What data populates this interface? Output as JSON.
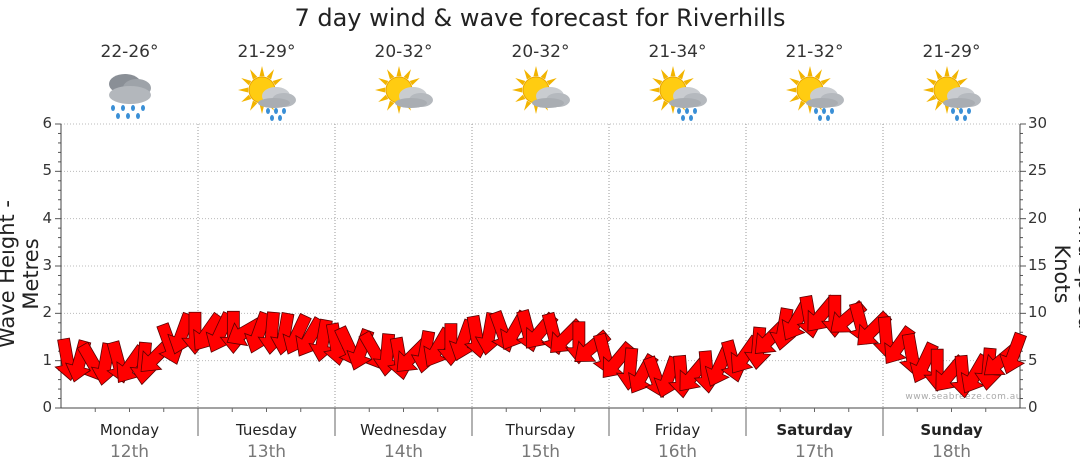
{
  "chart_data": {
    "type": "line",
    "title": "7 day wind & wave forecast for Riverhills",
    "ylabel_left": "Wave Height - Metres",
    "ylabel_right": "Wind Speed - Knots",
    "ylim_left": [
      0,
      6
    ],
    "ylim_right": [
      0,
      30
    ],
    "yticks_left": [
      "0",
      "1",
      "2",
      "3",
      "4",
      "5",
      "6"
    ],
    "yticks_right": [
      "0",
      "5",
      "10",
      "15",
      "20",
      "25",
      "30"
    ],
    "days": [
      {
        "name": "Monday",
        "date": "12th",
        "temp": "22-26°",
        "icon": "rain-cloud-icon",
        "bold": false
      },
      {
        "name": "Tuesday",
        "date": "13th",
        "temp": "21-29°",
        "icon": "sun-cloud-rain-icon",
        "bold": false
      },
      {
        "name": "Wednesday",
        "date": "14th",
        "temp": "20-32°",
        "icon": "sun-cloud-icon",
        "bold": false
      },
      {
        "name": "Thursday",
        "date": "15th",
        "temp": "20-32°",
        "icon": "sun-cloud-icon",
        "bold": false
      },
      {
        "name": "Friday",
        "date": "16th",
        "temp": "21-34°",
        "icon": "sun-cloud-rain-icon",
        "bold": false
      },
      {
        "name": "Saturday",
        "date": "17th",
        "temp": "21-32°",
        "icon": "sun-cloud-rain-icon",
        "bold": true
      },
      {
        "name": "Sunday",
        "date": "18th",
        "temp": "21-29°",
        "icon": "sun-cloud-rain-icon",
        "bold": true
      }
    ],
    "wind_series": {
      "name": "Wind speed (knots)",
      "color": "#ff0000",
      "arrow_direction_deg": [
        80,
        105,
        60,
        100,
        75,
        125,
        95,
        135,
        70,
        110,
        90,
        125,
        115,
        90,
        150,
        110,
        95,
        100,
        115,
        120,
        100,
        80,
        65,
        110,
        60,
        95,
        80,
        135,
        100,
        120,
        90,
        110,
        80,
        100,
        70,
        120,
        75,
        130,
        75,
        135,
        90,
        140,
        75,
        130,
        95,
        120,
        70,
        110,
        85,
        130,
        85,
        115,
        75,
        125,
        95,
        135,
        100,
        120,
        80,
        130,
        90,
        140,
        75,
        135,
        85,
        125,
        80,
        115,
        90,
        130,
        85,
        120,
        95,
        140,
        110
      ],
      "values": [
        5.2,
        5,
        4.8,
        4.7,
        4.9,
        4.6,
        4.8,
        5.5,
        6.8,
        7.9,
        8,
        8,
        8,
        8.1,
        8.1,
        8,
        8,
        7.9,
        7.8,
        7.5,
        7.2,
        6.8,
        6.5,
        6.2,
        6,
        5.7,
        5.3,
        5.5,
        6,
        6.4,
        6.8,
        7.2,
        7.6,
        7.9,
        8.1,
        8.2,
        8.2,
        8.1,
        7.9,
        7.5,
        7,
        6.4,
        5.7,
        5,
        4.2,
        3.6,
        3.3,
        3.3,
        3.4,
        3.6,
        3.9,
        4.4,
        5,
        5.6,
        6.4,
        7.4,
        8.4,
        9.2,
        9.7,
        9.9,
        9.8,
        9.5,
        9,
        8.3,
        7.5,
        6.6,
        5.7,
        4.8,
        4.1,
        3.6,
        3.4,
        3.6,
        4.2,
        5,
        5.8
      ]
    }
  },
  "credit": "www.seabreeze.com.au"
}
